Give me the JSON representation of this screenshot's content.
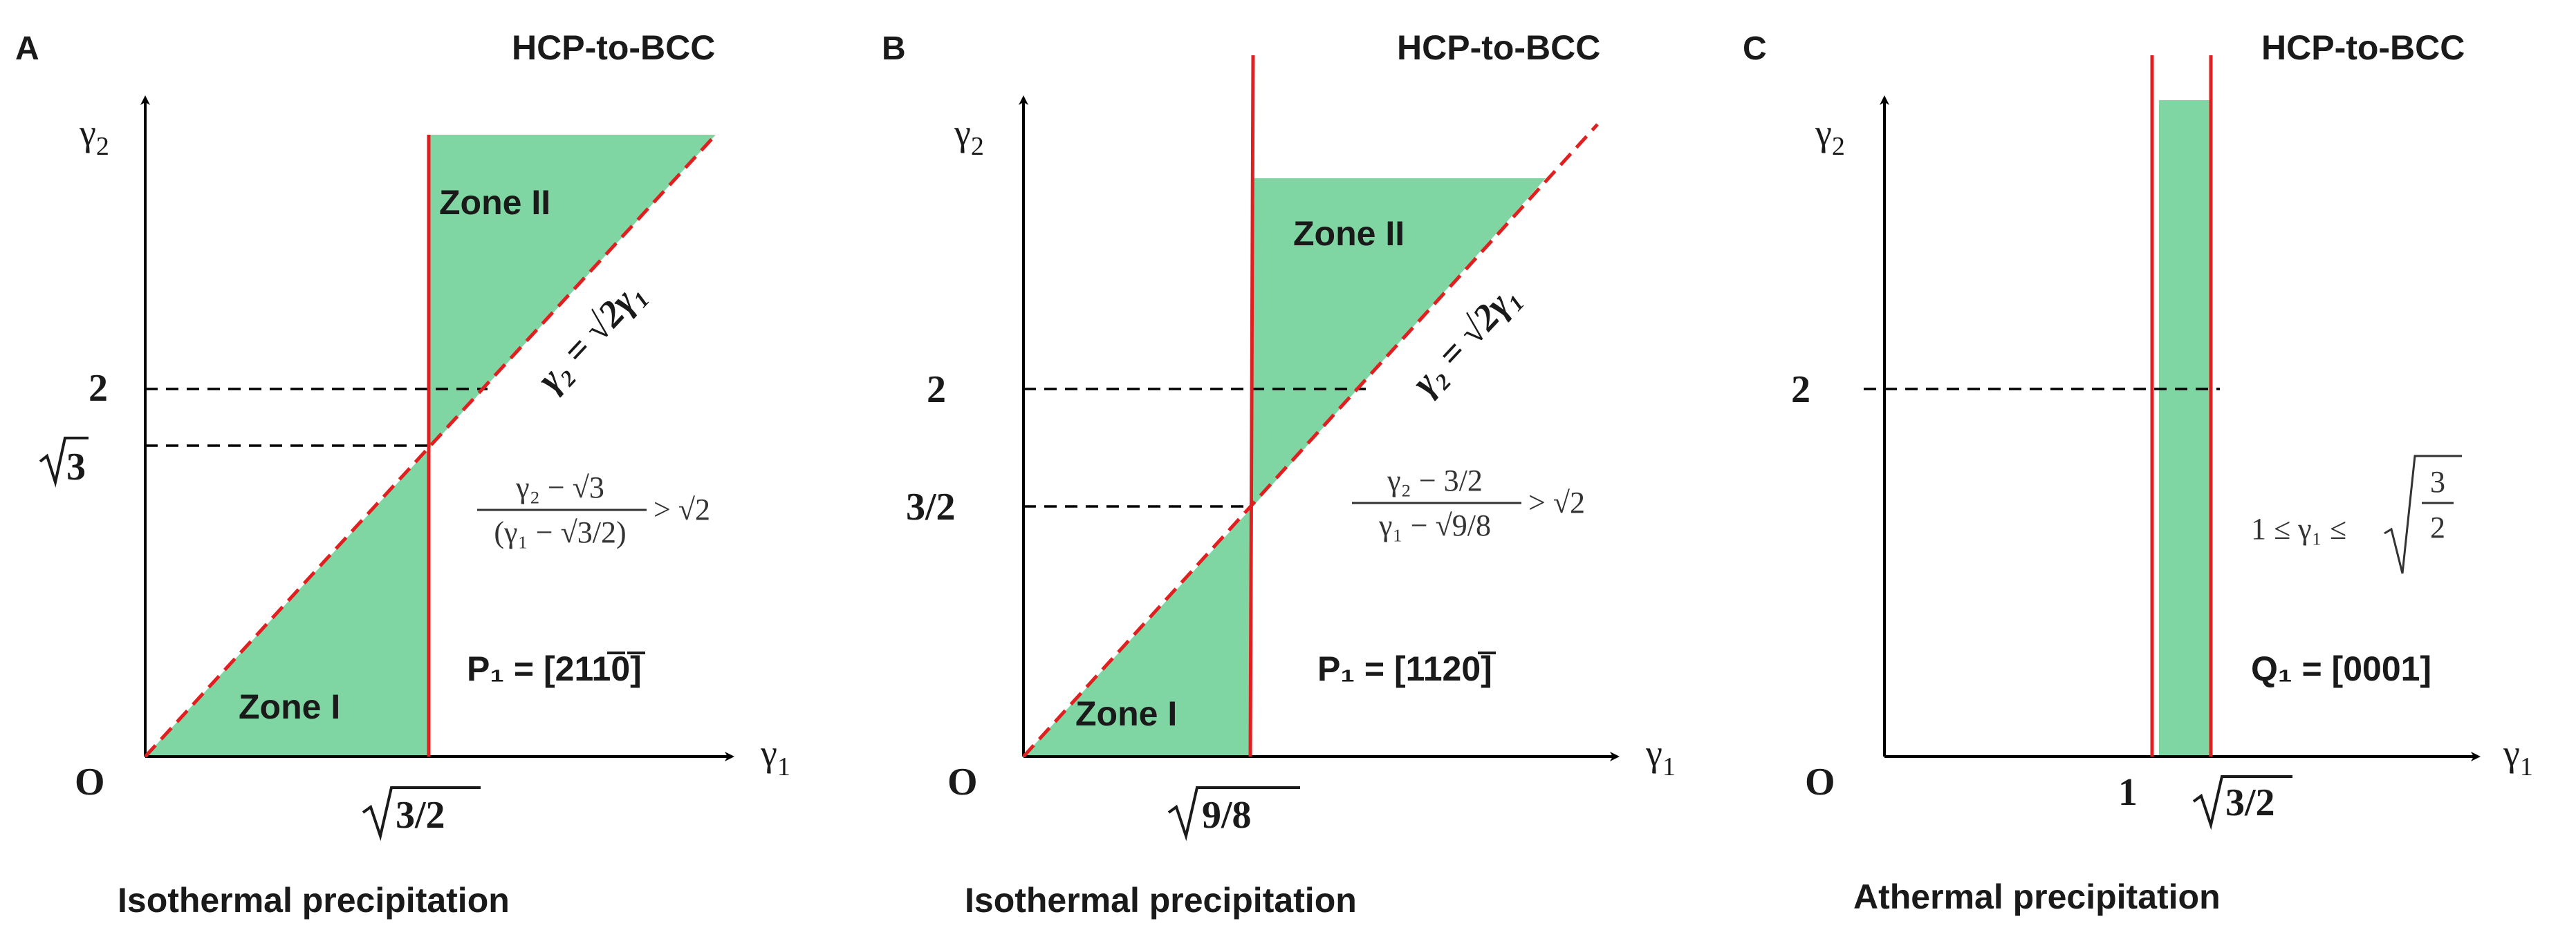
{
  "panels": [
    {
      "letter": "A",
      "title": "HCP-to-BCC",
      "caption": "Isothermal precipitation",
      "y_axis": "γ",
      "y_axis_sub": "2",
      "x_axis": "γ",
      "x_axis_sub": "1",
      "origin": "O",
      "y_tick_top": "2",
      "y_tick_low_root": "3",
      "x_tick_root": "3/2",
      "zone1": "Zone I",
      "zone2": "Zone II",
      "slope_eq": "γ₂ = √2γ₁",
      "condition_num": "γ₂ − √3",
      "condition_den": "(γ₁ − √3/2)",
      "condition_rhs": "> √2",
      "direction": "P₁ = [2110]"
    },
    {
      "letter": "B",
      "title": "HCP-to-BCC",
      "caption": "Isothermal precipitation",
      "y_axis": "γ",
      "y_axis_sub": "2",
      "x_axis": "γ",
      "x_axis_sub": "1",
      "origin": "O",
      "y_tick_top": "2",
      "y_tick_low": "3/2",
      "x_tick_root": "9/8",
      "zone1": "Zone I",
      "zone2": "Zone II",
      "slope_eq": "γ₂ = √2γ₁",
      "condition_num": "γ₂ − 3/2",
      "condition_den": "γ₁ − √9/8",
      "condition_rhs": "> √2",
      "direction": "P₁ = [1120]"
    },
    {
      "letter": "C",
      "title": "HCP-to-BCC",
      "caption": "Athermal precipitation",
      "y_axis": "γ",
      "y_axis_sub": "2",
      "x_axis": "γ",
      "x_axis_sub": "1",
      "origin": "O",
      "y_tick_top": "2",
      "x_tick_one": "1",
      "x_tick_root": "3/2",
      "condition_lhs": "1 ≤ γ₁ ≤",
      "condition_frac_num": "3",
      "condition_frac_den": "2",
      "direction": "Q₁ = [0001]"
    }
  ],
  "colors": {
    "zone_fill": "#7fd6a3",
    "boundary": "#e02020",
    "axis": "#000000"
  }
}
